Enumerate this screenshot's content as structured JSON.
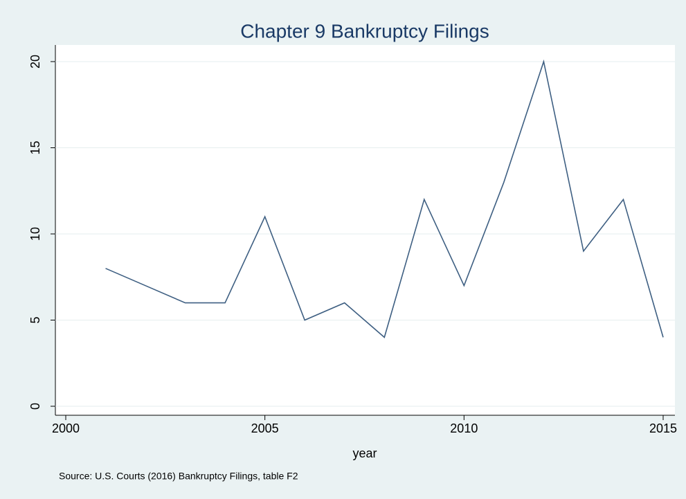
{
  "chart_data": {
    "type": "line",
    "title": "Chapter 9 Bankruptcy Filings",
    "x_label": "year",
    "note": "Source: U.S. Courts (2016) Bankruptcy Filings, table F2",
    "x": [
      2001,
      2002,
      2003,
      2004,
      2005,
      2006,
      2007,
      2008,
      2009,
      2010,
      2011,
      2012,
      2013,
      2014,
      2015
    ],
    "series": [
      {
        "name": "Chapter 9 Bankruptcy Filings",
        "color": "#3e5f82",
        "values": [
          8,
          7,
          6,
          6,
          11,
          5,
          6,
          4,
          12,
          7,
          13,
          20,
          9,
          12,
          4
        ]
      }
    ],
    "xlim": [
      2000,
      2015
    ],
    "xticks": [
      2000,
      2005,
      2010,
      2015
    ],
    "ylim": [
      0,
      20
    ],
    "yticks": [
      0,
      5,
      10,
      15,
      20
    ],
    "grid": true
  }
}
